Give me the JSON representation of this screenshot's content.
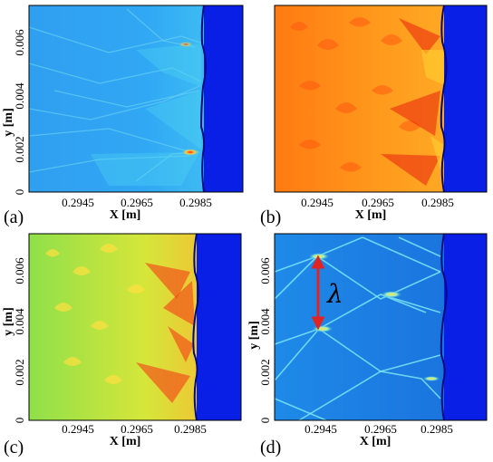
{
  "figure": {
    "panels": [
      {
        "id": "a",
        "label": "(a)",
        "xlabel": "X [m]",
        "ylabel": "y [m]",
        "xticks": [
          "0.2945",
          "0.2965",
          "0.2985"
        ],
        "yticks": [
          "0",
          "0.002",
          "0.004",
          "0.006"
        ],
        "field": "blue-cyan",
        "colors": {
          "base": "#2aa3f3",
          "light": "#47c6f0",
          "front": "#0a1fe6"
        }
      },
      {
        "id": "b",
        "label": "(b)",
        "xlabel": "X [m]",
        "ylabel": "",
        "xticks": [
          "0.2945",
          "0.2965",
          "0.2985"
        ],
        "yticks": [],
        "field": "orange-red",
        "colors": {
          "base": "#ff8c1a",
          "light": "#ffb020",
          "front": "#0a1fe6"
        }
      },
      {
        "id": "c",
        "label": "(c)",
        "xlabel": "X [m]",
        "ylabel": "y [m]",
        "xticks": [
          "0.2945",
          "0.2965",
          "0.2985"
        ],
        "yticks": [
          "0",
          "0.002",
          "0.004",
          "0.006"
        ],
        "field": "green-yellow",
        "colors": {
          "base": "#9ee64a",
          "light": "#f2e23a",
          "front": "#0a1fe6"
        }
      },
      {
        "id": "d",
        "label": "(d)",
        "xlabel": "X [m]",
        "ylabel": "y [m]",
        "xticks": [
          "0.2945",
          "0.2965",
          "0.2985"
        ],
        "yticks": [
          "0",
          "0.002",
          "0.004",
          "0.006"
        ],
        "field": "blue-cyan-dark",
        "colors": {
          "base": "#1f7fe0",
          "light": "#6fe0f2",
          "front": "#0a1fe6"
        },
        "annotation": {
          "symbol": "λ",
          "arrow_color": "#e02424"
        }
      }
    ]
  }
}
